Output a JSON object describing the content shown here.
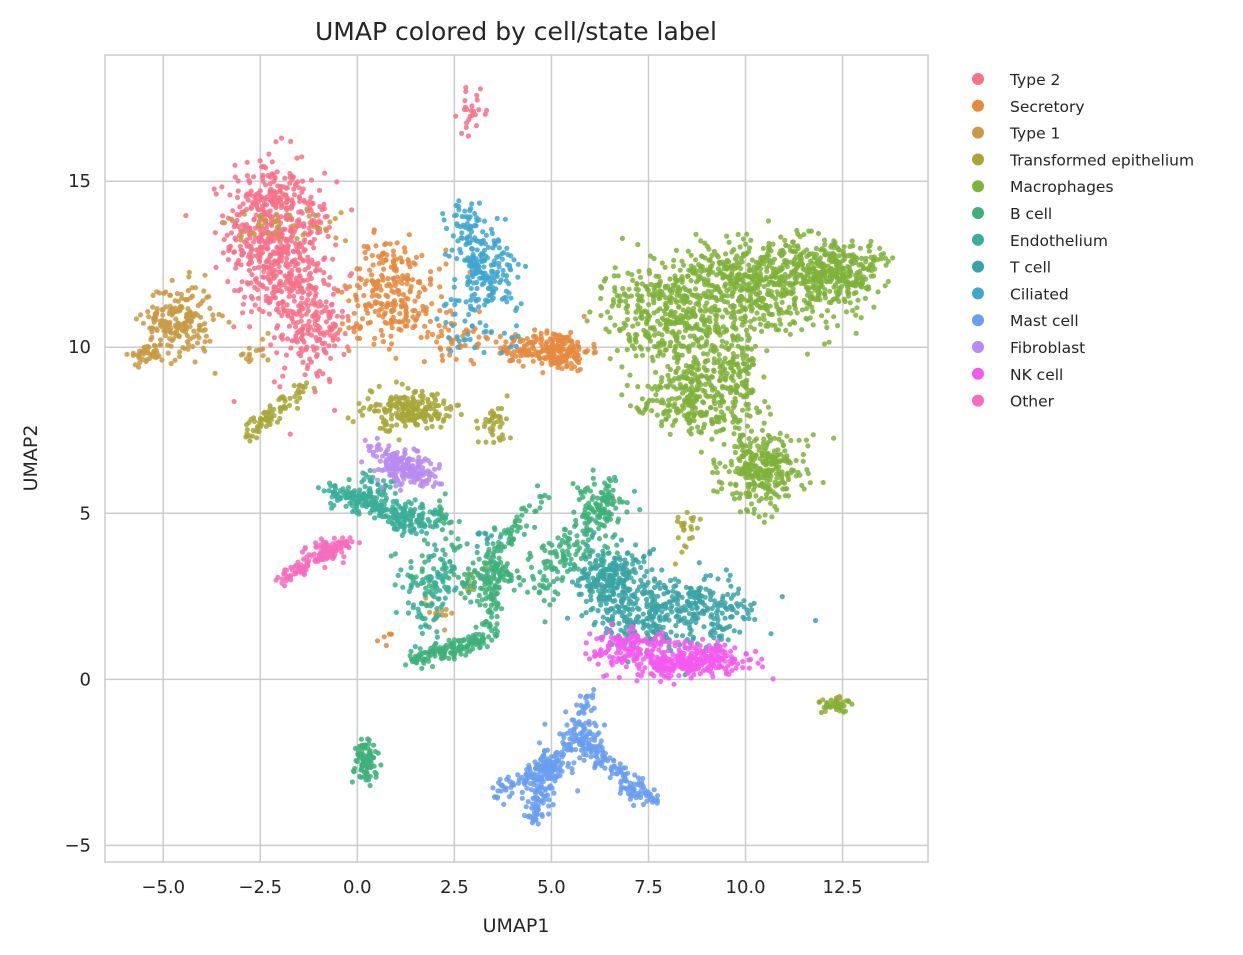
{
  "chart_data": {
    "type": "scatter",
    "title": "UMAP colored by cell/state label",
    "xlabel": "UMAP1",
    "ylabel": "UMAP2",
    "xlim": [
      -6.5,
      14.7
    ],
    "ylim": [
      -5.5,
      18.8
    ],
    "xticks": [
      -5.0,
      -2.5,
      0.0,
      2.5,
      5.0,
      7.5,
      10.0,
      12.5
    ],
    "xtick_labels": [
      "−5.0",
      "−2.5",
      "0.0",
      "2.5",
      "5.0",
      "7.5",
      "10.0",
      "12.5"
    ],
    "yticks": [
      -5,
      0,
      5,
      10,
      15
    ],
    "ytick_labels": [
      "−5",
      "0",
      "5",
      "10",
      "15"
    ],
    "grid": true,
    "legend_position": "outside-right",
    "series": [
      {
        "name": "Type 2",
        "color": "#f77189",
        "clusters": [
          [
            -2.4,
            13.4,
            0.5,
            1.2,
            360
          ],
          [
            -1.5,
            12.4,
            0.45,
            1.3,
            280
          ],
          [
            -1.2,
            10.5,
            0.45,
            0.8,
            120
          ],
          [
            3.0,
            17.1,
            0.2,
            0.3,
            25
          ],
          [
            -0.7,
            10.2,
            0.2,
            0.3,
            15
          ]
        ],
        "strands": [
          [
            -2.9,
            14.4,
            -1.4,
            14.5,
            0.15,
            40
          ]
        ]
      },
      {
        "name": "Secretory",
        "color": "#e58a3e",
        "clusters": [
          [
            5.1,
            9.9,
            0.45,
            0.3,
            200
          ],
          [
            0.7,
            11.8,
            0.45,
            0.8,
            150
          ],
          [
            1.3,
            12.0,
            0.5,
            0.6,
            60
          ],
          [
            2.6,
            10.3,
            0.5,
            0.3,
            50
          ],
          [
            4.0,
            9.9,
            0.3,
            0.2,
            30
          ],
          [
            1.5,
            11.1,
            0.4,
            0.3,
            30
          ]
        ],
        "strands": [
          [
            0.5,
            1.2,
            1.0,
            1.4,
            0.1,
            6
          ],
          [
            -0.4,
            10.6,
            0.3,
            10.4,
            0.1,
            10
          ]
        ]
      },
      {
        "name": "Type 1",
        "color": "#c89a44",
        "clusters": [
          [
            -4.6,
            10.8,
            0.45,
            0.55,
            200
          ],
          [
            -5.4,
            9.8,
            0.2,
            0.15,
            40
          ],
          [
            2.1,
            2.1,
            0.25,
            0.25,
            15
          ]
        ],
        "strands": [
          [
            -3.2,
            13.6,
            -0.4,
            13.8,
            0.25,
            40
          ],
          [
            -2.9,
            9.7,
            -2.2,
            10.2,
            0.15,
            15
          ]
        ]
      },
      {
        "name": "Transformed epithelium",
        "color": "#a7a738",
        "clusters": [
          [
            1.3,
            8.1,
            0.55,
            0.3,
            200
          ],
          [
            3.5,
            7.7,
            0.2,
            0.3,
            40
          ],
          [
            12.3,
            -0.7,
            0.2,
            0.12,
            30
          ],
          [
            8.4,
            4.6,
            0.1,
            0.2,
            12
          ],
          [
            3.0,
            2.9,
            0.2,
            0.2,
            10
          ]
        ],
        "strands": [
          [
            -2.9,
            7.2,
            -1.5,
            8.7,
            0.15,
            80
          ],
          [
            8.2,
            3.5,
            8.8,
            4.8,
            0.1,
            12
          ]
        ]
      },
      {
        "name": "Macrophages",
        "color": "#7fb23a",
        "clusters": [
          [
            8.2,
            10.8,
            0.9,
            0.8,
            400
          ],
          [
            10.6,
            11.8,
            1.1,
            0.7,
            500
          ],
          [
            12.4,
            12.3,
            0.6,
            0.4,
            250
          ],
          [
            10.4,
            6.4,
            0.55,
            0.6,
            300
          ],
          [
            8.7,
            8.6,
            0.45,
            0.6,
            180
          ],
          [
            9.8,
            9.1,
            0.3,
            0.6,
            120
          ],
          [
            12.3,
            -0.8,
            0.18,
            0.12,
            25
          ]
        ],
        "strands": [
          [
            6.6,
            11.5,
            11.8,
            13.0,
            0.35,
            150
          ],
          [
            7.0,
            8.4,
            9.8,
            7.8,
            0.3,
            80
          ]
        ]
      },
      {
        "name": "B cell",
        "color": "#3fb07a",
        "clusters": [
          [
            0.2,
            -2.5,
            0.15,
            0.35,
            90
          ],
          [
            6.3,
            5.3,
            0.35,
            0.4,
            80
          ],
          [
            3.2,
            3.1,
            0.35,
            0.35,
            60
          ],
          [
            5.5,
            3.7,
            0.5,
            0.4,
            70
          ],
          [
            1.9,
            3.2,
            0.5,
            0.4,
            40
          ]
        ],
        "strands": [
          [
            1.4,
            0.6,
            3.3,
            1.2,
            0.12,
            150
          ],
          [
            3.3,
            1.2,
            3.6,
            4.0,
            0.15,
            90
          ],
          [
            3.6,
            4.0,
            4.8,
            5.5,
            0.15,
            50
          ],
          [
            3.4,
            3.3,
            5.0,
            2.8,
            0.2,
            40
          ],
          [
            4.8,
            2.0,
            5.5,
            4.8,
            0.2,
            30
          ],
          [
            5.7,
            4.2,
            6.5,
            6.0,
            0.2,
            50
          ],
          [
            2.0,
            5.3,
            2.6,
            3.8,
            0.15,
            30
          ]
        ]
      },
      {
        "name": "Endothelium",
        "color": "#3aae98",
        "clusters": [
          [
            1.3,
            5.0,
            0.45,
            0.25,
            60
          ],
          [
            0.3,
            5.5,
            0.35,
            0.3,
            70
          ],
          [
            6.4,
            3.1,
            0.3,
            0.35,
            50
          ],
          [
            2.0,
            2.7,
            0.5,
            0.4,
            40
          ]
        ],
        "strands": [
          [
            -0.8,
            5.8,
            1.8,
            4.6,
            0.18,
            150
          ],
          [
            1.7,
            1.5,
            2.2,
            3.9,
            0.2,
            50
          ],
          [
            0.9,
            4.8,
            1.6,
            4.9,
            0.15,
            20
          ]
        ]
      },
      {
        "name": "T cell",
        "color": "#3ba3a6",
        "clusters": [
          [
            6.6,
            2.9,
            0.45,
            0.55,
            220
          ],
          [
            8.4,
            2.1,
            0.9,
            0.6,
            280
          ],
          [
            7.2,
            1.6,
            0.45,
            0.35,
            60
          ],
          [
            3.3,
            4.3,
            0.15,
            0.2,
            10
          ]
        ],
        "strands": [
          [
            8.6,
            2.6,
            9.9,
            1.9,
            0.2,
            50
          ]
        ]
      },
      {
        "name": "Ciliated",
        "color": "#40a6cf",
        "clusters": [
          [
            3.3,
            12.5,
            0.4,
            0.6,
            170
          ],
          [
            2.8,
            13.9,
            0.25,
            0.25,
            40
          ],
          [
            3.2,
            10.4,
            0.5,
            0.35,
            30
          ]
        ],
        "strands": [
          [
            2.3,
            11.0,
            3.8,
            11.6,
            0.2,
            25
          ]
        ]
      },
      {
        "name": "Mast cell",
        "color": "#6a9ef0",
        "clusters": [
          [
            5.0,
            -2.5,
            0.25,
            0.3,
            40
          ]
        ],
        "strands": [
          [
            5.7,
            -1.8,
            7.6,
            -3.7,
            0.16,
            150
          ],
          [
            5.0,
            -2.4,
            4.5,
            -4.2,
            0.15,
            110
          ],
          [
            5.3,
            -2.3,
            3.5,
            -3.5,
            0.14,
            100
          ],
          [
            5.6,
            -1.3,
            6.0,
            -0.5,
            0.12,
            30
          ],
          [
            5.3,
            -1.9,
            6.1,
            -1.7,
            0.25,
            60
          ]
        ]
      },
      {
        "name": "Fibroblast",
        "color": "#b98bf0",
        "clusters": [
          [
            1.2,
            6.4,
            0.35,
            0.25,
            140
          ],
          [
            1.8,
            6.0,
            0.15,
            0.15,
            20
          ]
        ],
        "strands": [
          [
            0.3,
            7.0,
            1.7,
            6.2,
            0.12,
            40
          ]
        ]
      },
      {
        "name": "NK cell",
        "color": "#f35bef",
        "clusters": [
          [
            8.8,
            0.6,
            0.7,
            0.25,
            220
          ],
          [
            6.9,
            0.9,
            0.4,
            0.25,
            120
          ],
          [
            7.9,
            0.4,
            0.4,
            0.2,
            80
          ]
        ],
        "strands": [
          [
            6.1,
            1.5,
            9.6,
            0.7,
            0.15,
            40
          ]
        ]
      },
      {
        "name": "Other",
        "color": "#f66cbe",
        "clusters": [
          [
            -0.8,
            3.9,
            0.25,
            0.2,
            40
          ]
        ],
        "strands": [
          [
            -2.0,
            3.0,
            -0.2,
            4.2,
            0.1,
            110
          ]
        ]
      }
    ]
  }
}
